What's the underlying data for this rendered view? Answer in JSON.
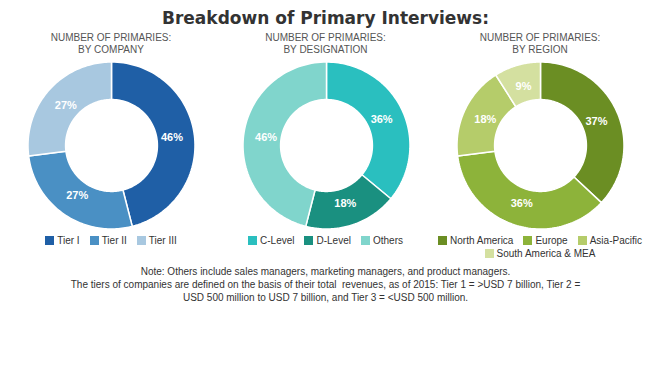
{
  "title": "Breakdown of Primary Interviews:",
  "annotations": [
    "Note: Others include sales managers, marketing managers, and product managers.",
    "The tiers of companies are defined on the basis of their total  revenues, as of 2015: Tier 1 = >USD 7 billion, Tier 2 =",
    "USD 500 million to USD 7 billion, and Tier 3 = <USD 500 million."
  ],
  "chart_data": [
    {
      "type": "donut",
      "title": "NUMBER OF PRIMARIES:\nBY COMPANY",
      "categories": [
        "Tier I",
        "Tier II",
        "Tier III"
      ],
      "values": [
        46,
        27,
        27
      ],
      "value_labels": [
        "46%",
        "27%",
        "27%"
      ],
      "colors": [
        "#1F5FA6",
        "#4A90C4",
        "#A8C8E0"
      ],
      "data_labels": true
    },
    {
      "type": "donut",
      "title": "NUMBER OF PRIMARIES:\nBY DESIGNATION",
      "categories": [
        "C-Level",
        "D-Level",
        "Others"
      ],
      "values": [
        36,
        18,
        46
      ],
      "value_labels": [
        "36%",
        "18%",
        "46%"
      ],
      "colors": [
        "#2ABFBF",
        "#1A9080",
        "#80D5CC"
      ],
      "data_labels": true
    },
    {
      "type": "donut",
      "title": "NUMBER OF PRIMARIES:\nBY REGION",
      "categories": [
        "North America",
        "Europe",
        "Asia-Pacific",
        "South America & MEA"
      ],
      "values": [
        37,
        36,
        18,
        9
      ],
      "value_labels": [
        "37%",
        "36%",
        "18%",
        "9%"
      ],
      "colors": [
        "#6B8E23",
        "#8DB33A",
        "#B5CC6A",
        "#D4E0A0"
      ],
      "data_labels": true
    }
  ]
}
